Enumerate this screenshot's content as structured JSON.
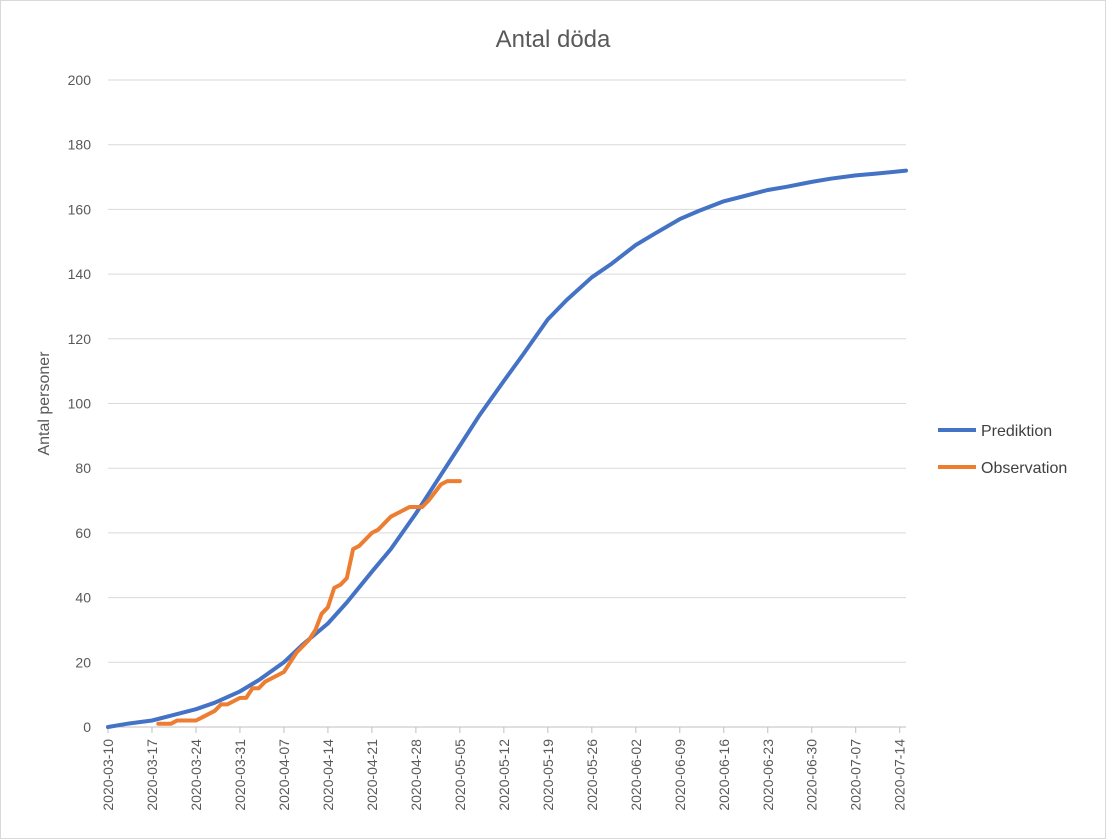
{
  "chart_data": {
    "type": "line",
    "title": "Antal döda",
    "xlabel": "",
    "ylabel": "Antal personer",
    "ylim": [
      0,
      200
    ],
    "yticks": [
      0,
      20,
      40,
      60,
      80,
      100,
      120,
      140,
      160,
      180,
      200
    ],
    "x_tick_labels": [
      "2020-03-10",
      "2020-03-17",
      "2020-03-24",
      "2020-03-31",
      "2020-04-07",
      "2020-04-14",
      "2020-04-21",
      "2020-04-28",
      "2020-05-05",
      "2020-05-12",
      "2020-05-19",
      "2020-05-26",
      "2020-06-02",
      "2020-06-09",
      "2020-06-16",
      "2020-06-23",
      "2020-06-30",
      "2020-07-07",
      "2020-07-14"
    ],
    "x_range": [
      "2020-03-10",
      "2020-07-15"
    ],
    "grid": "horizontal",
    "legend_position": "right",
    "series": [
      {
        "name": "Prediktion",
        "color": "#4472C4",
        "points": [
          [
            "2020-03-10",
            0
          ],
          [
            "2020-03-13",
            1
          ],
          [
            "2020-03-17",
            2
          ],
          [
            "2020-03-20",
            3.5
          ],
          [
            "2020-03-24",
            5.5
          ],
          [
            "2020-03-27",
            7.5
          ],
          [
            "2020-03-31",
            11
          ],
          [
            "2020-04-03",
            14.5
          ],
          [
            "2020-04-07",
            20
          ],
          [
            "2020-04-10",
            25.5
          ],
          [
            "2020-04-14",
            32
          ],
          [
            "2020-04-17",
            38.5
          ],
          [
            "2020-04-21",
            48
          ],
          [
            "2020-04-24",
            55
          ],
          [
            "2020-04-28",
            66
          ],
          [
            "2020-05-01",
            75
          ],
          [
            "2020-05-05",
            87
          ],
          [
            "2020-05-08",
            96
          ],
          [
            "2020-05-12",
            107
          ],
          [
            "2020-05-15",
            115
          ],
          [
            "2020-05-19",
            126
          ],
          [
            "2020-05-22",
            132
          ],
          [
            "2020-05-26",
            139
          ],
          [
            "2020-05-29",
            143
          ],
          [
            "2020-06-02",
            149
          ],
          [
            "2020-06-05",
            152.5
          ],
          [
            "2020-06-09",
            157
          ],
          [
            "2020-06-12",
            159.5
          ],
          [
            "2020-06-16",
            162.5
          ],
          [
            "2020-06-19",
            164
          ],
          [
            "2020-06-23",
            166
          ],
          [
            "2020-06-26",
            167
          ],
          [
            "2020-06-30",
            168.5
          ],
          [
            "2020-07-03",
            169.5
          ],
          [
            "2020-07-07",
            170.5
          ],
          [
            "2020-07-10",
            171
          ],
          [
            "2020-07-15",
            172
          ]
        ]
      },
      {
        "name": "Observation",
        "color": "#ED7D31",
        "points": [
          [
            "2020-03-18",
            1
          ],
          [
            "2020-03-20",
            1
          ],
          [
            "2020-03-21",
            2
          ],
          [
            "2020-03-24",
            2
          ],
          [
            "2020-03-25",
            3
          ],
          [
            "2020-03-27",
            5
          ],
          [
            "2020-03-28",
            7
          ],
          [
            "2020-03-29",
            7
          ],
          [
            "2020-03-31",
            9
          ],
          [
            "2020-04-01",
            9
          ],
          [
            "2020-04-02",
            12
          ],
          [
            "2020-04-03",
            12
          ],
          [
            "2020-04-04",
            14
          ],
          [
            "2020-04-07",
            17
          ],
          [
            "2020-04-08",
            20
          ],
          [
            "2020-04-09",
            23
          ],
          [
            "2020-04-11",
            27
          ],
          [
            "2020-04-12",
            30
          ],
          [
            "2020-04-13",
            35
          ],
          [
            "2020-04-14",
            37
          ],
          [
            "2020-04-15",
            43
          ],
          [
            "2020-04-16",
            44
          ],
          [
            "2020-04-17",
            46
          ],
          [
            "2020-04-18",
            55
          ],
          [
            "2020-04-19",
            56
          ],
          [
            "2020-04-21",
            60
          ],
          [
            "2020-04-22",
            61
          ],
          [
            "2020-04-23",
            63
          ],
          [
            "2020-04-24",
            65
          ],
          [
            "2020-04-25",
            66
          ],
          [
            "2020-04-27",
            68
          ],
          [
            "2020-04-29",
            68
          ],
          [
            "2020-04-30",
            70
          ],
          [
            "2020-05-02",
            75
          ],
          [
            "2020-05-03",
            76
          ],
          [
            "2020-05-05",
            76
          ]
        ]
      }
    ]
  }
}
